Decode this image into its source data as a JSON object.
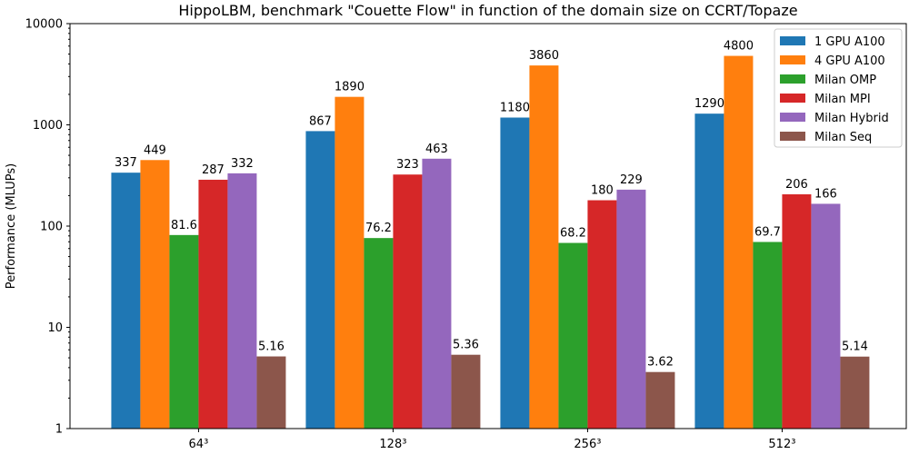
{
  "chart_data": {
    "type": "bar",
    "title": "HippoLBM, benchmark \"Couette Flow\" in function of the domain size on CCRT/Topaze",
    "xlabel": "",
    "ylabel": "Performance (MLUPs)",
    "yscale": "log",
    "ylim": [
      1,
      10000
    ],
    "yticks": [
      1,
      10,
      100,
      1000,
      10000
    ],
    "ytick_labels": [
      "1",
      "10",
      "100",
      "1000",
      "10000"
    ],
    "categories": [
      "64³",
      "128³",
      "256³",
      "512³"
    ],
    "legend_position": "top-right",
    "grid": false,
    "series": [
      {
        "name": "1 GPU A100",
        "color": "#1f77b4",
        "values": [
          337,
          867,
          1180,
          1290
        ],
        "labels": [
          "337",
          "867",
          "1180",
          "1290"
        ]
      },
      {
        "name": "4 GPU A100",
        "color": "#ff7f0e",
        "values": [
          449,
          1890,
          3860,
          4800
        ],
        "labels": [
          "449",
          "1890",
          "3860",
          "4800"
        ]
      },
      {
        "name": "Milan OMP",
        "color": "#2ca02c",
        "values": [
          81.6,
          76.2,
          68.2,
          69.7
        ],
        "labels": [
          "81.6",
          "76.2",
          "68.2",
          "69.7"
        ]
      },
      {
        "name": "Milan MPI",
        "color": "#d62728",
        "values": [
          287,
          323,
          180,
          206
        ],
        "labels": [
          "287",
          "323",
          "180",
          "206"
        ]
      },
      {
        "name": "Milan Hybrid",
        "color": "#9467bd",
        "values": [
          332,
          463,
          229,
          166
        ],
        "labels": [
          "332",
          "463",
          "229",
          "166"
        ]
      },
      {
        "name": "Milan Seq",
        "color": "#8c564b",
        "values": [
          5.16,
          5.36,
          3.62,
          5.14
        ],
        "labels": [
          "5.16",
          "5.36",
          "3.62",
          "5.14"
        ]
      }
    ]
  }
}
